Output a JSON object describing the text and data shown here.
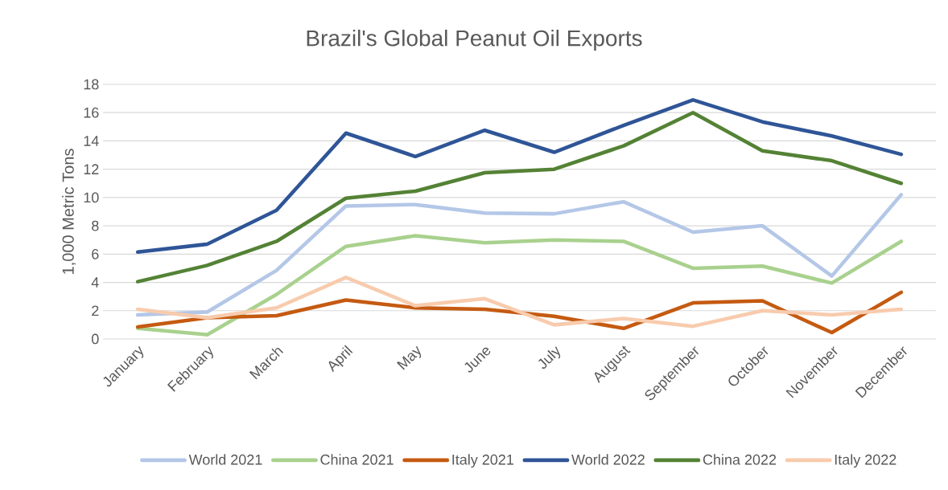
{
  "chart_data": {
    "type": "line",
    "title": "Brazil's Global Peanut Oil Exports",
    "ylabel": "1,000 Metric Tons",
    "categories": [
      "January",
      "February",
      "March",
      "April",
      "May",
      "June",
      "July",
      "August",
      "September",
      "October",
      "November",
      "December"
    ],
    "ylim": [
      0,
      18
    ],
    "yticks": [
      0,
      2,
      4,
      6,
      8,
      10,
      12,
      14,
      16,
      18
    ],
    "grid": "y",
    "legend": "bottom",
    "marker": "none",
    "line_style": "solid",
    "series": [
      {
        "name": "World 2021",
        "color": "#b4c7e7",
        "values": [
          1.7,
          1.9,
          4.85,
          9.4,
          9.5,
          8.9,
          8.85,
          9.7,
          7.55,
          8.0,
          4.45,
          10.2
        ]
      },
      {
        "name": "China 2021",
        "color": "#a9d18e",
        "values": [
          0.75,
          0.3,
          3.15,
          6.55,
          7.3,
          6.8,
          7.0,
          6.9,
          5.0,
          5.15,
          3.95,
          6.9
        ]
      },
      {
        "name": "Italy 2021",
        "color": "#c55a11",
        "values": [
          0.85,
          1.5,
          1.65,
          2.75,
          2.2,
          2.1,
          1.6,
          0.75,
          2.55,
          2.7,
          0.45,
          3.3
        ]
      },
      {
        "name": "World 2022",
        "color": "#2f5597",
        "values": [
          6.15,
          6.7,
          9.1,
          14.55,
          12.9,
          14.75,
          13.2,
          15.1,
          16.9,
          15.35,
          14.35,
          13.05
        ]
      },
      {
        "name": "China 2022",
        "color": "#548235",
        "values": [
          4.05,
          5.2,
          6.9,
          9.95,
          10.45,
          11.75,
          12.0,
          13.65,
          16.0,
          13.3,
          12.6,
          11.0
        ]
      },
      {
        "name": "Italy 2022",
        "color": "#f8cbad",
        "values": [
          2.1,
          1.5,
          2.2,
          4.35,
          2.35,
          2.85,
          1.0,
          1.45,
          0.9,
          2.0,
          1.7,
          2.1
        ]
      }
    ]
  }
}
